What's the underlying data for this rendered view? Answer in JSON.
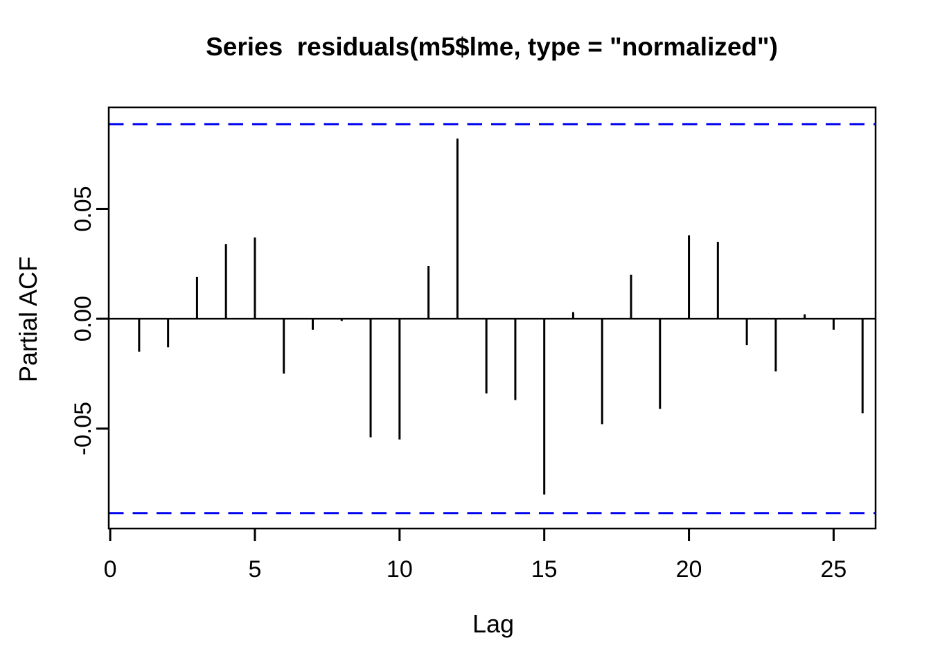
{
  "chart_data": {
    "type": "bar",
    "subtype": "pacf-stem-plot",
    "title": "Series  residuals(m5$lme, type = \"normalized\")",
    "xlabel": "Lag",
    "ylabel": "Partial ACF",
    "xlim": [
      -0.05,
      26.45
    ],
    "ylim": [
      -0.0955,
      0.0962
    ],
    "x_ticks": [
      0,
      5,
      10,
      15,
      20,
      25
    ],
    "x_tick_labels": [
      "0",
      "5",
      "10",
      "15",
      "20",
      "25"
    ],
    "y_ticks": [
      -0.05,
      0.0,
      0.05
    ],
    "y_tick_labels": [
      "-0.05",
      "0.00",
      "0.05"
    ],
    "grid": "off",
    "legend": "none",
    "confidence_bounds": {
      "upper": 0.0885,
      "lower": -0.0885,
      "style": "dashed"
    },
    "lags": [
      1,
      2,
      3,
      4,
      5,
      6,
      7,
      8,
      9,
      10,
      11,
      12,
      13,
      14,
      15,
      16,
      17,
      18,
      19,
      20,
      21,
      22,
      23,
      24,
      25,
      26
    ],
    "values": [
      -0.015,
      -0.013,
      0.019,
      0.034,
      0.037,
      -0.025,
      -0.005,
      -0.001,
      -0.054,
      -0.055,
      0.024,
      0.082,
      -0.034,
      -0.037,
      -0.08,
      0.003,
      -0.048,
      0.02,
      -0.041,
      0.038,
      0.035,
      -0.012,
      -0.024,
      0.002,
      -0.005,
      -0.043
    ],
    "colors": {
      "stem": "#000000",
      "axis": "#000000",
      "confidence_line": "#0000EE",
      "background": "#ffffff"
    }
  }
}
